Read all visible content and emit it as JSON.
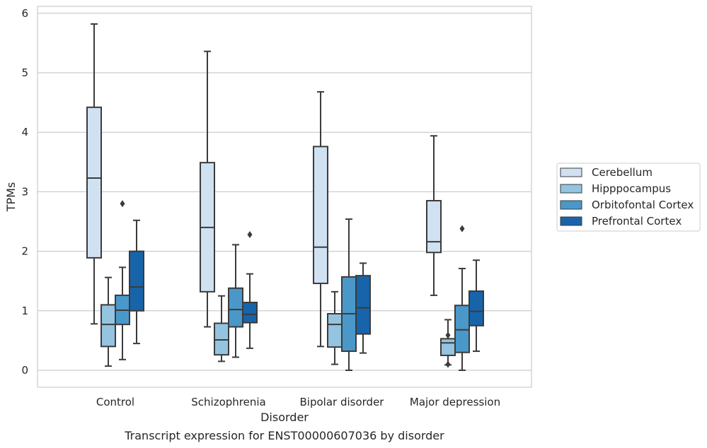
{
  "chart_data": {
    "type": "box",
    "title": "",
    "caption": "Transcript expression for ENST00000607036 by disorder",
    "xlabel": "Disorder",
    "ylabel": "TPMs",
    "ylim": [
      -0.28,
      6.1
    ],
    "yticks": [
      0,
      1,
      2,
      3,
      4,
      5,
      6
    ],
    "grid": "horizontal",
    "legend_position": "right",
    "categories": [
      "Control",
      "Schizophrenia",
      "Bipolar disorder",
      "Major depression"
    ],
    "series": [
      {
        "name": "Cerebellum",
        "color": "#d0e1f2",
        "boxes": [
          {
            "whisker_low": 0.78,
            "q1": 1.89,
            "median": 3.23,
            "q3": 4.42,
            "whisker_high": 5.82,
            "outliers": []
          },
          {
            "whisker_low": 0.73,
            "q1": 1.32,
            "median": 2.4,
            "q3": 3.49,
            "whisker_high": 5.36,
            "outliers": []
          },
          {
            "whisker_low": 0.4,
            "q1": 1.46,
            "median": 2.07,
            "q3": 3.76,
            "whisker_high": 4.68,
            "outliers": []
          },
          {
            "whisker_low": 1.26,
            "q1": 1.98,
            "median": 2.16,
            "q3": 2.85,
            "whisker_high": 3.94,
            "outliers": []
          }
        ]
      },
      {
        "name": "Hipppocampus",
        "color": "#94c4df",
        "boxes": [
          {
            "whisker_low": 0.07,
            "q1": 0.4,
            "median": 0.77,
            "q3": 1.1,
            "whisker_high": 1.56,
            "outliers": []
          },
          {
            "whisker_low": 0.15,
            "q1": 0.26,
            "median": 0.51,
            "q3": 0.79,
            "whisker_high": 1.25,
            "outliers": []
          },
          {
            "whisker_low": 0.1,
            "q1": 0.39,
            "median": 0.77,
            "q3": 0.95,
            "whisker_high": 1.32,
            "outliers": []
          },
          {
            "whisker_low": 0.09,
            "q1": 0.25,
            "median": 0.46,
            "q3": 0.53,
            "whisker_high": 0.85,
            "outliers": [
              0.59,
              0.1
            ]
          }
        ]
      },
      {
        "name": "Orbitofontal Cortex",
        "color": "#4a98c9",
        "boxes": [
          {
            "whisker_low": 0.18,
            "q1": 0.77,
            "median": 1.01,
            "q3": 1.26,
            "whisker_high": 1.73,
            "outliers": [
              2.8
            ]
          },
          {
            "whisker_low": 0.22,
            "q1": 0.73,
            "median": 1.02,
            "q3": 1.38,
            "whisker_high": 2.11,
            "outliers": []
          },
          {
            "whisker_low": 0.0,
            "q1": 0.32,
            "median": 0.95,
            "q3": 1.57,
            "whisker_high": 2.54,
            "outliers": []
          },
          {
            "whisker_low": 0.0,
            "q1": 0.3,
            "median": 0.68,
            "q3": 1.09,
            "whisker_high": 1.71,
            "outliers": [
              2.38
            ]
          }
        ]
      },
      {
        "name": "Prefrontal Cortex",
        "color": "#1764ab",
        "boxes": [
          {
            "whisker_low": 0.45,
            "q1": 1.0,
            "median": 1.4,
            "q3": 2.0,
            "whisker_high": 2.52,
            "outliers": []
          },
          {
            "whisker_low": 0.37,
            "q1": 0.8,
            "median": 0.94,
            "q3": 1.14,
            "whisker_high": 1.62,
            "outliers": [
              2.28
            ]
          },
          {
            "whisker_low": 0.29,
            "q1": 0.61,
            "median": 1.05,
            "q3": 1.59,
            "whisker_high": 1.8,
            "outliers": []
          },
          {
            "whisker_low": 0.32,
            "q1": 0.75,
            "median": 0.99,
            "q3": 1.33,
            "whisker_high": 1.85,
            "outliers": []
          }
        ]
      }
    ]
  }
}
